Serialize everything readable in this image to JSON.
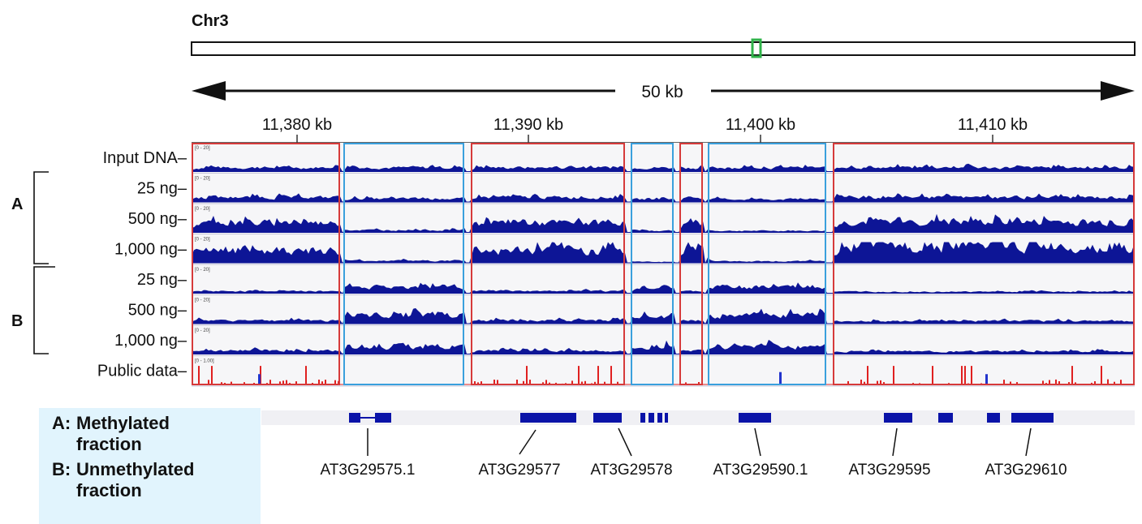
{
  "chromosome": {
    "label": "Chr3",
    "scale_label": "50 kb",
    "highlight_color": "#2fb34a"
  },
  "axis": {
    "ticks": [
      "11,380 kb",
      "11,390 kb",
      "11,400 kb",
      "11,410 kb"
    ]
  },
  "groups": [
    {
      "label": "A"
    },
    {
      "label": "B"
    }
  ],
  "tracks": [
    {
      "label": "Input DNA–",
      "range": "[0 - 20]",
      "color": "#0d1596",
      "level": 0.3
    },
    {
      "label": "25 ng–",
      "range": "[0 - 20]",
      "color": "#0d1596",
      "level": 0.35
    },
    {
      "label": "500 ng–",
      "range": "[0 - 20]",
      "color": "#0d1596",
      "level": 0.6
    },
    {
      "label": "1,000 ng–",
      "range": "[0 - 20]",
      "color": "#0d1596",
      "level": 0.8
    },
    {
      "label": "25 ng–",
      "range": "[0 - 20]",
      "color": "#0d1596",
      "level": 0.4
    },
    {
      "label": "500 ng–",
      "range": "[0 - 20]",
      "color": "#0d1596",
      "level": 0.5
    },
    {
      "label": "1,000 ng–",
      "range": "[0 - 20]",
      "color": "#0d1596",
      "level": 0.5
    },
    {
      "label": "Public data–",
      "range": "[0 - 1.00]",
      "color": "#e02020",
      "level": 0.6
    }
  ],
  "regions": [
    {
      "type": "methylated",
      "color": "#d63a3a"
    },
    {
      "type": "unmethylated",
      "color": "#3aa0dd"
    },
    {
      "type": "methylated",
      "color": "#d63a3a"
    },
    {
      "type": "unmethylated",
      "color": "#3aa0dd"
    },
    {
      "type": "methylated",
      "color": "#d63a3a"
    },
    {
      "type": "unmethylated",
      "color": "#3aa0dd"
    },
    {
      "type": "methylated",
      "color": "#d63a3a"
    }
  ],
  "genes": [
    {
      "name": "AT3G29575.1"
    },
    {
      "name": "AT3G29577"
    },
    {
      "name": "AT3G29578"
    },
    {
      "name": "AT3G29590.1"
    },
    {
      "name": "AT3G29595"
    },
    {
      "name": "AT3G29610"
    }
  ],
  "legend": {
    "a_key": "A:",
    "a_text": "Methylated fraction",
    "b_key": "B:",
    "b_text": "Unmethylated fraction"
  }
}
